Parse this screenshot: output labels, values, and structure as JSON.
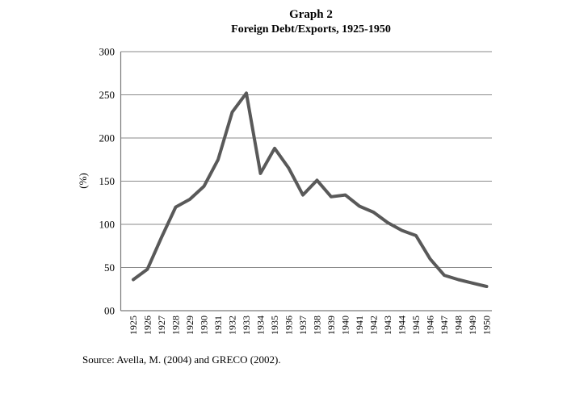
{
  "header": {
    "title": "Graph 2",
    "subtitle": "Foreign Debt/Exports, 1925-1950"
  },
  "footer": {
    "source": "Source: Avella, M. (2004) and GRECO (2002)."
  },
  "colors": {
    "background": "#ffffff",
    "line": "#595959",
    "gridline": "#8a8a8a",
    "axis": "#7a7a7a",
    "text": "#000000"
  },
  "chart_data": {
    "type": "line",
    "title": "Graph 2",
    "subtitle": "Foreign Debt/Exports, 1925-1950",
    "xlabel": "",
    "ylabel": "(%)",
    "ylim": [
      0,
      300
    ],
    "grid": "horizontal-only",
    "legend": "none",
    "y_ticks": [
      {
        "label": "300",
        "value": 300
      },
      {
        "label": "250",
        "value": 250
      },
      {
        "label": "200",
        "value": 200
      },
      {
        "label": "150",
        "value": 150
      },
      {
        "label": "100",
        "value": 100
      },
      {
        "label": "50",
        "value": 50
      },
      {
        "label": "00",
        "value": 0
      }
    ],
    "categories": [
      "1925",
      "1926",
      "1927",
      "1928",
      "1929",
      "1930",
      "1931",
      "1932",
      "1933",
      "1934",
      "1935",
      "1936",
      "1937",
      "1938",
      "1939",
      "1940",
      "1941",
      "1942",
      "1943",
      "1944",
      "1945",
      "1946",
      "1947",
      "1948",
      "1949",
      "1950"
    ],
    "series": [
      {
        "name": "Foreign Debt/Exports (%)",
        "values": [
          36,
          48,
          85,
          120,
          129,
          144,
          175,
          230,
          252,
          159,
          188,
          165,
          134,
          151,
          132,
          134,
          121,
          114,
          102,
          93,
          87,
          60,
          41,
          36,
          32,
          28
        ]
      }
    ],
    "line_color": "#595959",
    "line_width": 4
  }
}
